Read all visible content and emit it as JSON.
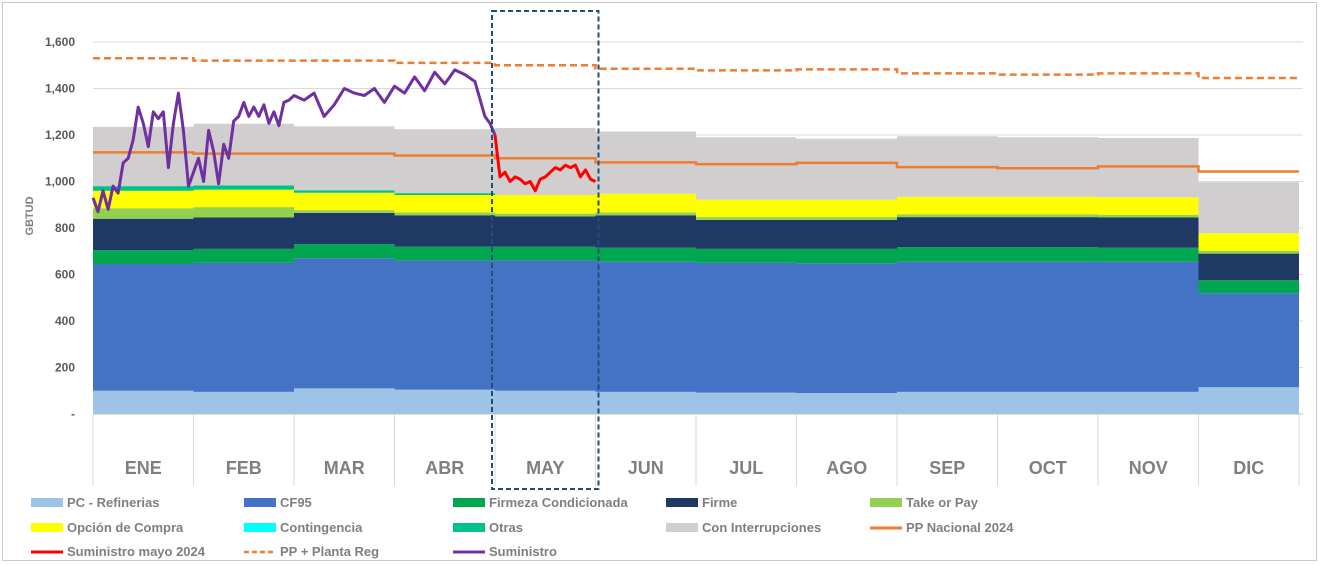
{
  "chart_data": {
    "type": "area",
    "ylabel": "GBTUD",
    "ylim": [
      0,
      1600
    ],
    "yticks": [
      0,
      200,
      400,
      600,
      800,
      1000,
      1200,
      1400,
      1600
    ],
    "ytick_labels": [
      "-",
      "200",
      "400",
      "600",
      "800",
      "1,000",
      "1,200",
      "1,400",
      "1,600"
    ],
    "categories": [
      "ENE",
      "FEB",
      "MAR",
      "ABR",
      "MAY",
      "JUN",
      "JUL",
      "AGO",
      "SEP",
      "OCT",
      "NOV",
      "DIC"
    ],
    "highlight_category": "MAY",
    "grid": true,
    "legend_position": "bottom",
    "stacked_series": [
      {
        "name": "PC - Refinerias",
        "color": "#9dc3e6",
        "values": [
          100,
          95,
          110,
          105,
          100,
          95,
          92,
          90,
          95,
          95,
          95,
          115
        ]
      },
      {
        "name": "CF95",
        "color": "#4472c4",
        "values": [
          545,
          555,
          560,
          555,
          560,
          560,
          558,
          558,
          560,
          560,
          560,
          405
        ]
      },
      {
        "name": "Firmeza Condicionada",
        "color": "#00a650",
        "values": [
          60,
          60,
          60,
          60,
          60,
          60,
          60,
          62,
          62,
          62,
          60,
          55
        ]
      },
      {
        "name": "Firme",
        "color": "#1f3864",
        "values": [
          135,
          135,
          135,
          135,
          130,
          140,
          125,
          125,
          130,
          130,
          130,
          115
        ]
      },
      {
        "name": "Take or Pay",
        "color": "#92d050",
        "values": [
          45,
          45,
          12,
          12,
          12,
          12,
          12,
          12,
          12,
          12,
          12,
          12
        ]
      },
      {
        "name": "Opción de Compra",
        "color": "#ffff00",
        "values": [
          75,
          75,
          75,
          75,
          80,
          80,
          75,
          75,
          75,
          75,
          75,
          75
        ]
      },
      {
        "name": "Contingencia",
        "color": "#00ffff",
        "values": [
          0,
          0,
          0,
          0,
          0,
          0,
          0,
          0,
          0,
          0,
          0,
          0
        ]
      },
      {
        "name": "Otras",
        "color": "#00c08b",
        "values": [
          20,
          18,
          10,
          8,
          0,
          0,
          0,
          0,
          0,
          0,
          0,
          0
        ]
      },
      {
        "name": "Con Interrupciones",
        "color": "#d0cece",
        "values": [
          255,
          265,
          275,
          275,
          288,
          268,
          268,
          262,
          261,
          256,
          255,
          220
        ]
      }
    ],
    "line_series": [
      {
        "name": "PP Nacional 2024",
        "color": "#ed7d31",
        "style": "solid",
        "values": [
          1125,
          1120,
          1120,
          1112,
          1100,
          1082,
          1075,
          1080,
          1062,
          1057,
          1065,
          1043
        ]
      },
      {
        "name": "PP + Planta Reg",
        "color": "#ed7d31",
        "style": "dashed",
        "values": [
          1530,
          1520,
          1520,
          1510,
          1500,
          1485,
          1478,
          1482,
          1465,
          1460,
          1465,
          1445
        ]
      }
    ],
    "daily_series": [
      {
        "name": "Suministro",
        "color": "#7030a0",
        "x": [
          0.0,
          0.05,
          0.1,
          0.15,
          0.2,
          0.25,
          0.3,
          0.35,
          0.4,
          0.45,
          0.5,
          0.55,
          0.6,
          0.65,
          0.7,
          0.75,
          0.8,
          0.85,
          0.9,
          0.95,
          1.0,
          1.05,
          1.1,
          1.15,
          1.2,
          1.25,
          1.3,
          1.35,
          1.4,
          1.45,
          1.5,
          1.55,
          1.6,
          1.65,
          1.7,
          1.75,
          1.8,
          1.85,
          1.9,
          1.95,
          2.0,
          2.1,
          2.2,
          2.3,
          2.4,
          2.5,
          2.6,
          2.7,
          2.8,
          2.9,
          3.0,
          3.1,
          3.2,
          3.3,
          3.4,
          3.5,
          3.6,
          3.7,
          3.8,
          3.9,
          3.95,
          4.0
        ],
        "values": [
          930,
          870,
          960,
          880,
          980,
          950,
          1080,
          1100,
          1180,
          1320,
          1250,
          1150,
          1300,
          1270,
          1300,
          1060,
          1250,
          1380,
          1220,
          980,
          1040,
          1100,
          1000,
          1220,
          1130,
          990,
          1160,
          1100,
          1260,
          1280,
          1340,
          1280,
          1320,
          1280,
          1330,
          1250,
          1300,
          1240,
          1340,
          1350,
          1370,
          1350,
          1380,
          1280,
          1330,
          1400,
          1380,
          1370,
          1400,
          1340,
          1410,
          1380,
          1450,
          1390,
          1470,
          1420,
          1480,
          1460,
          1430,
          1280,
          1250,
          1200
        ]
      },
      {
        "name": "Suministro mayo 2024",
        "color": "#ff0000",
        "x": [
          4.0,
          4.05,
          4.1,
          4.15,
          4.2,
          4.25,
          4.3,
          4.35,
          4.4,
          4.45,
          4.5,
          4.55,
          4.6,
          4.65,
          4.7,
          4.75,
          4.8,
          4.85,
          4.9,
          4.95,
          5.0
        ],
        "values": [
          1200,
          1020,
          1040,
          1000,
          1020,
          1010,
          990,
          1000,
          960,
          1010,
          1020,
          1040,
          1060,
          1050,
          1070,
          1060,
          1070,
          1020,
          1050,
          1010,
          1000
        ]
      }
    ],
    "legend": [
      {
        "name": "PC - Refinerias",
        "type": "box",
        "color": "#9dc3e6"
      },
      {
        "name": "CF95",
        "type": "box",
        "color": "#4472c4"
      },
      {
        "name": "Firmeza Condicionada",
        "type": "box",
        "color": "#00a650"
      },
      {
        "name": "Firme",
        "type": "box",
        "color": "#1f3864"
      },
      {
        "name": "Take or Pay",
        "type": "box",
        "color": "#92d050"
      },
      {
        "name": "Opción de Compra",
        "type": "box",
        "color": "#ffff00"
      },
      {
        "name": "Contingencia",
        "type": "box",
        "color": "#00ffff"
      },
      {
        "name": "Otras",
        "type": "box",
        "color": "#00c08b"
      },
      {
        "name": "Con Interrupciones",
        "type": "box",
        "color": "#d0cece"
      },
      {
        "name": "PP Nacional 2024",
        "type": "line",
        "color": "#ed7d31"
      },
      {
        "name": "Suministro mayo 2024",
        "type": "line",
        "color": "#ff0000"
      },
      {
        "name": "PP + Planta Reg",
        "type": "dash",
        "color": "#ed7d31"
      },
      {
        "name": "Suministro",
        "type": "line",
        "color": "#7030a0"
      }
    ]
  }
}
